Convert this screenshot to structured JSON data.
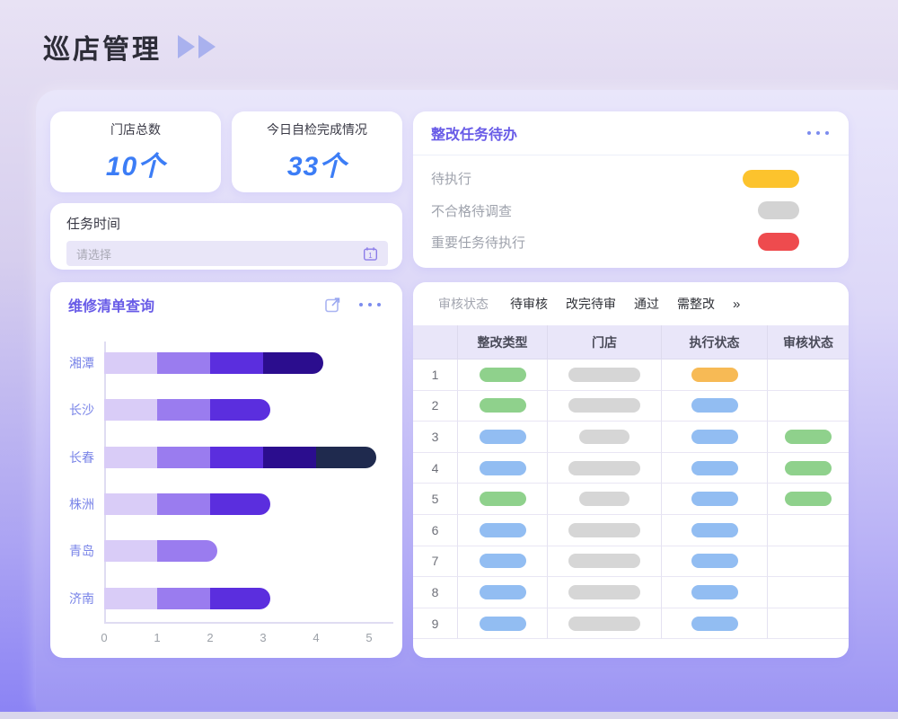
{
  "header": {
    "title": "巡店管理"
  },
  "stats": [
    {
      "label": "门店总数",
      "value": "10个"
    },
    {
      "label": "今日自检完成情况",
      "value": "33个"
    }
  ],
  "task_time": {
    "label": "任务时间",
    "placeholder": "请选择"
  },
  "todo": {
    "title": "整改任务待办",
    "items": [
      {
        "label": "待执行",
        "pill_color": "#FCC32D",
        "pill_width": 63
      },
      {
        "label": "不合格待调查",
        "pill_color": "#D3D3D3",
        "pill_width": 46
      },
      {
        "label": "重要任务待执行",
        "pill_color": "#EE4B4E",
        "pill_width": 46
      }
    ]
  },
  "repair_panel": {
    "title": "维修清单查询"
  },
  "chart_data": {
    "type": "bar",
    "orientation": "horizontal",
    "stacked": true,
    "categories": [
      "湘潭",
      "长沙",
      "长春",
      "株洲",
      "青岛",
      "济南"
    ],
    "series": [
      {
        "name": "level-1",
        "color": "#D9CCF7",
        "values": [
          1,
          1,
          1,
          1,
          1,
          1
        ]
      },
      {
        "name": "level-2",
        "color": "#9A7CEF",
        "values": [
          1,
          1,
          1,
          1,
          1,
          1
        ]
      },
      {
        "name": "level-3",
        "color": "#5B2EDE",
        "values": [
          1,
          1,
          1,
          1,
          0,
          1
        ]
      },
      {
        "name": "level-4",
        "color": "#2B0D8E",
        "values": [
          1,
          0,
          1,
          0,
          0,
          0
        ]
      },
      {
        "name": "level-5",
        "color": "#1F2A4E",
        "values": [
          0,
          0,
          1,
          0,
          0,
          0
        ]
      }
    ],
    "totals": [
      4,
      3,
      5,
      3,
      2,
      3
    ],
    "xlim": [
      0,
      5
    ],
    "xticks": [
      "0",
      "1",
      "2",
      "3",
      "4",
      "5"
    ],
    "grid": false,
    "legend": false
  },
  "review_table": {
    "filter_label": "审核状态",
    "filters": [
      "待审核",
      "改完待审",
      "通过",
      "需整改"
    ],
    "more_symbol": "»",
    "columns": [
      "整改类型",
      "门店",
      "执行状态",
      "审核状态"
    ],
    "pill_colors": {
      "green": "#8FD18C",
      "blue": "#92BDF2",
      "orange": "#F7BA55",
      "gray": "#D6D6D6"
    },
    "rows": [
      {
        "num": "1",
        "type": "green",
        "store": "wide",
        "exec": "orange",
        "review": ""
      },
      {
        "num": "2",
        "type": "green",
        "store": "wide",
        "exec": "blue",
        "review": ""
      },
      {
        "num": "3",
        "type": "blue",
        "store": "short",
        "exec": "blue",
        "review": "green"
      },
      {
        "num": "4",
        "type": "blue",
        "store": "wide",
        "exec": "blue",
        "review": "green"
      },
      {
        "num": "5",
        "type": "green",
        "store": "short",
        "exec": "blue",
        "review": "green"
      },
      {
        "num": "6",
        "type": "blue",
        "store": "wide",
        "exec": "blue",
        "review": ""
      },
      {
        "num": "7",
        "type": "blue",
        "store": "wide",
        "exec": "blue",
        "review": ""
      },
      {
        "num": "8",
        "type": "blue",
        "store": "wide",
        "exec": "blue",
        "review": ""
      },
      {
        "num": "9",
        "type": "blue",
        "store": "wide",
        "exec": "blue",
        "review": ""
      }
    ]
  },
  "colors": {
    "accent_purple": "#685BE7",
    "value_blue": "#3C7DF6",
    "icon_periwinkle": "#A9B1EE"
  }
}
